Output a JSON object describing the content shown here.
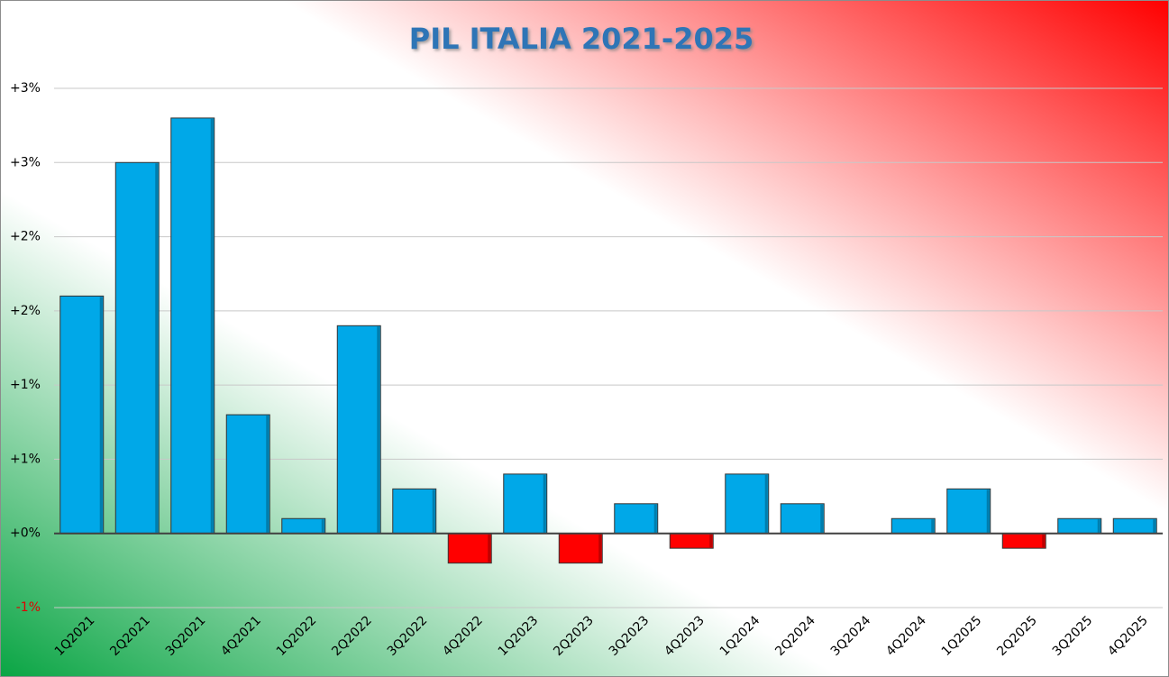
{
  "chart_data": {
    "type": "bar",
    "title": "PIL ITALIA 2021-2025",
    "categories": [
      "1Q2021",
      "2Q2021",
      "3Q2021",
      "4Q2021",
      "1Q2022",
      "2Q2022",
      "3Q2022",
      "4Q2022",
      "1Q2023",
      "2Q2023",
      "3Q2023",
      "4Q2023",
      "1Q2024",
      "2Q2024",
      "3Q2024",
      "4Q2024",
      "1Q2025",
      "2Q2025",
      "3Q2025",
      "4Q2025"
    ],
    "values": [
      1.6,
      2.5,
      2.8,
      0.8,
      0.1,
      1.4,
      0.3,
      -0.2,
      0.4,
      -0.2,
      0.2,
      -0.1,
      0.4,
      0.2,
      0,
      0.1,
      0.3,
      -0.1,
      0.1,
      0.1
    ],
    "color": "#00a8e8",
    "negative_color": "#ff0000",
    "ylim": [
      -0.5,
      3
    ],
    "yticks": [
      {
        "value": -0.5,
        "label": "-1%"
      },
      {
        "value": 0,
        "label": "+0%"
      },
      {
        "value": 0.5,
        "label": "+1%"
      },
      {
        "value": 1,
        "label": "+1%"
      },
      {
        "value": 1.5,
        "label": "+2%"
      },
      {
        "value": 2,
        "label": "+2%"
      },
      {
        "value": 2.5,
        "label": "+3%"
      },
      {
        "value": 3,
        "label": "+3%"
      }
    ],
    "grid": true
  }
}
